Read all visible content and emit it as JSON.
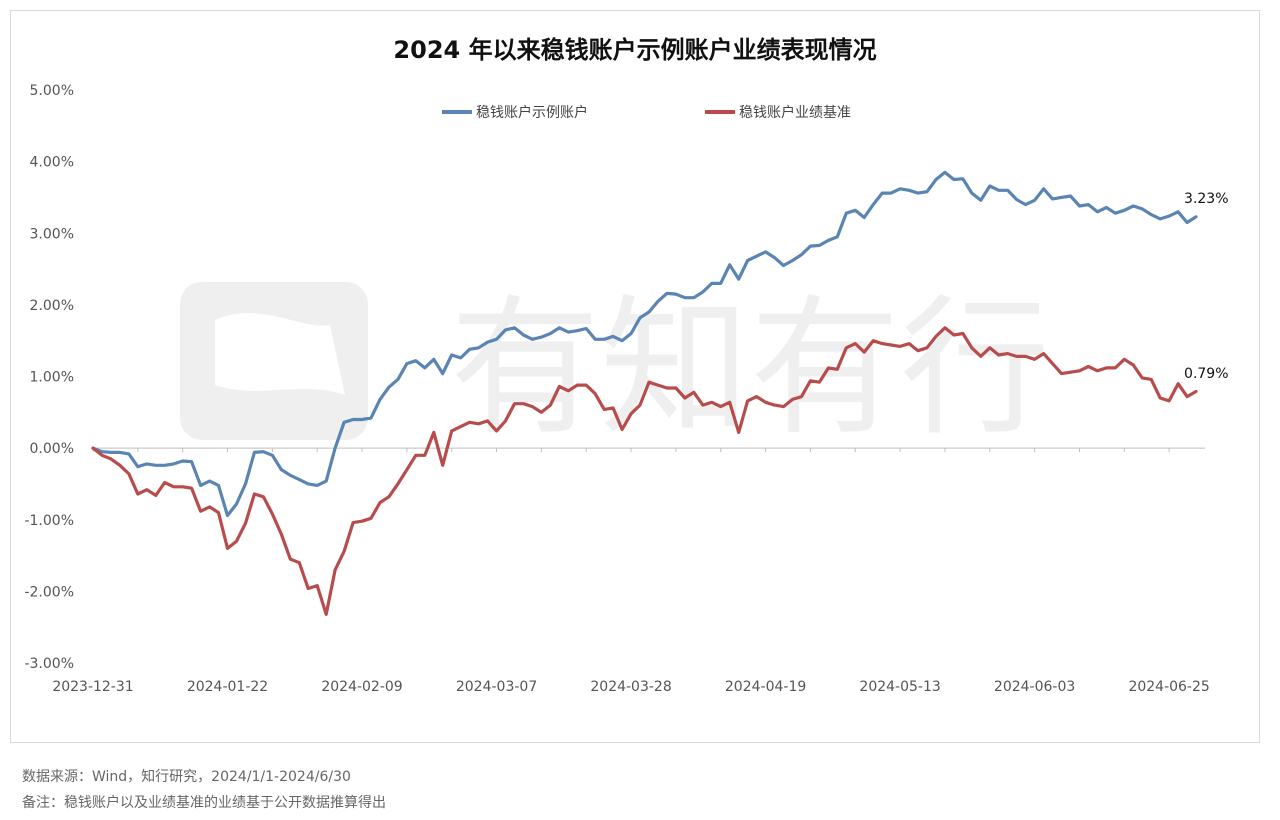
{
  "chart_data": {
    "type": "line",
    "title": "2024 年以来稳钱账户示例账户业绩表现情况",
    "yaxis": {
      "ticks": [
        5.0,
        4.0,
        3.0,
        2.0,
        1.0,
        0.0,
        -1.0,
        -2.0,
        -3.0
      ],
      "tick_labels": [
        "5.00%",
        "4.00%",
        "3.00%",
        "2.00%",
        "1.00%",
        "0.00%",
        "-1.00%",
        "-2.00%",
        "-3.00%"
      ],
      "ylim": [
        -3.0,
        5.0
      ],
      "unit": "%"
    },
    "xaxis": {
      "tick_labels": [
        "2023-12-31",
        "2024-01-22",
        "2024-02-09",
        "2024-03-07",
        "2024-03-28",
        "2024-04-19",
        "2024-05-13",
        "2024-06-03",
        "2024-06-25"
      ],
      "tick_index": [
        0,
        15,
        30,
        45,
        60,
        75,
        90,
        105,
        120
      ],
      "n_points": 125
    },
    "legend_position": "top-center",
    "grid": false,
    "series": [
      {
        "name": "稳钱账户示例账户",
        "color": "#5a84b4",
        "end_label": "3.23%",
        "values": [
          0.0,
          -0.05,
          -0.06,
          -0.06,
          -0.08,
          -0.26,
          -0.22,
          -0.24,
          -0.24,
          -0.22,
          -0.18,
          -0.19,
          -0.52,
          -0.46,
          -0.52,
          -0.94,
          -0.78,
          -0.5,
          -0.06,
          -0.05,
          -0.1,
          -0.3,
          -0.38,
          -0.44,
          -0.5,
          -0.52,
          -0.46,
          0.0,
          0.36,
          0.4,
          0.4,
          0.42,
          0.68,
          0.85,
          0.96,
          1.18,
          1.22,
          1.12,
          1.24,
          1.04,
          1.3,
          1.26,
          1.38,
          1.4,
          1.48,
          1.52,
          1.65,
          1.68,
          1.58,
          1.52,
          1.55,
          1.6,
          1.68,
          1.62,
          1.64,
          1.67,
          1.52,
          1.52,
          1.56,
          1.5,
          1.6,
          1.82,
          1.9,
          2.05,
          2.16,
          2.15,
          2.1,
          2.1,
          2.18,
          2.3,
          2.3,
          2.56,
          2.36,
          2.62,
          2.68,
          2.74,
          2.66,
          2.55,
          2.62,
          2.7,
          2.82,
          2.83,
          2.9,
          2.95,
          3.28,
          3.32,
          3.22,
          3.4,
          3.56,
          3.56,
          3.62,
          3.6,
          3.56,
          3.58,
          3.75,
          3.85,
          3.75,
          3.76,
          3.56,
          3.46,
          3.66,
          3.6,
          3.6,
          3.47,
          3.4,
          3.46,
          3.62,
          3.48,
          3.5,
          3.52,
          3.38,
          3.4,
          3.3,
          3.36,
          3.28,
          3.32,
          3.38,
          3.34,
          3.26,
          3.2,
          3.24,
          3.3,
          3.15,
          3.23
        ]
      },
      {
        "name": "稳钱账户业绩基准",
        "color": "#b84c4c",
        "end_label": "0.79%",
        "values": [
          0.0,
          -0.1,
          -0.15,
          -0.24,
          -0.36,
          -0.64,
          -0.58,
          -0.66,
          -0.48,
          -0.54,
          -0.54,
          -0.56,
          -0.88,
          -0.82,
          -0.9,
          -1.4,
          -1.3,
          -1.05,
          -0.64,
          -0.68,
          -0.92,
          -1.2,
          -1.55,
          -1.6,
          -1.96,
          -1.92,
          -2.32,
          -1.7,
          -1.44,
          -1.04,
          -1.02,
          -0.98,
          -0.76,
          -0.68,
          -0.5,
          -0.3,
          -0.1,
          -0.1,
          0.22,
          -0.24,
          0.24,
          0.3,
          0.36,
          0.34,
          0.38,
          0.24,
          0.38,
          0.62,
          0.62,
          0.58,
          0.5,
          0.6,
          0.86,
          0.8,
          0.88,
          0.88,
          0.76,
          0.54,
          0.56,
          0.26,
          0.48,
          0.6,
          0.92,
          0.88,
          0.84,
          0.84,
          0.7,
          0.78,
          0.6,
          0.64,
          0.58,
          0.64,
          0.22,
          0.66,
          0.72,
          0.64,
          0.6,
          0.58,
          0.68,
          0.72,
          0.94,
          0.92,
          1.12,
          1.1,
          1.4,
          1.46,
          1.34,
          1.5,
          1.46,
          1.44,
          1.42,
          1.46,
          1.36,
          1.4,
          1.56,
          1.68,
          1.58,
          1.6,
          1.4,
          1.28,
          1.4,
          1.3,
          1.32,
          1.28,
          1.28,
          1.24,
          1.32,
          1.18,
          1.04,
          1.06,
          1.08,
          1.14,
          1.08,
          1.12,
          1.12,
          1.24,
          1.16,
          0.98,
          0.96,
          0.7,
          0.66,
          0.9,
          0.72,
          0.79
        ]
      }
    ]
  },
  "footer": {
    "source": "数据来源：Wind，知行研究，2024/1/1-2024/6/30",
    "note": "备注：稳钱账户以及业绩基准的业绩基于公开数据推算得出"
  },
  "watermark": {
    "text": "有知有行"
  }
}
